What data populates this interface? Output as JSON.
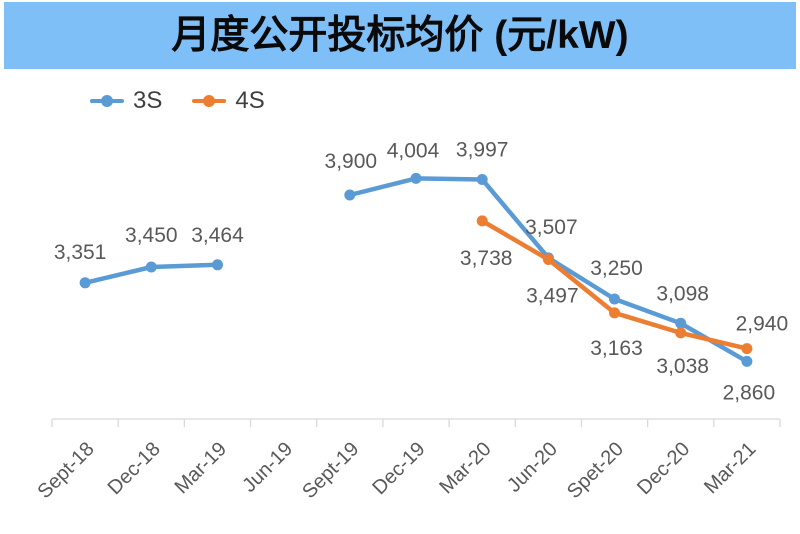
{
  "title": "月度公开投标均价 (元/kW)",
  "legend": [
    {
      "label": "3S",
      "color": "#5b9bd5"
    },
    {
      "label": "4S",
      "color": "#ed7d31"
    }
  ],
  "colors": {
    "banner_background": "#7ebff8",
    "title_text": "#0a0a0a",
    "axis_line": "#d9d9d9",
    "label_text": "#595959",
    "legend_text": "#404040",
    "series_3s": "#5b9bd5",
    "series_4s": "#ed7d31"
  },
  "chart_data": {
    "type": "line",
    "title": "月度公开投标均价 (元/kW)",
    "xlabel": "",
    "ylabel": "",
    "grid": false,
    "legend_position": "top-left",
    "ylim": [
      2500,
      4400
    ],
    "categories": [
      "Sept-18",
      "Dec-18",
      "Mar-19",
      "Jun-19",
      "Sept-19",
      "Dec-19",
      "Mar-20",
      "Jun-20",
      "Spet-20",
      "Dec-20",
      "Mar-21"
    ],
    "series": [
      {
        "name": "3S",
        "color": "#5b9bd5",
        "values": [
          3351,
          3450,
          3464,
          null,
          3900,
          4004,
          3997,
          3507,
          3250,
          3098,
          2860
        ],
        "labels": [
          "3,351",
          "3,450",
          "3,464",
          null,
          "3,900",
          "4,004",
          "3,997",
          "3,507",
          "3,250",
          "3,098",
          "2,860"
        ],
        "label_offsets": [
          [
            -5,
            -31
          ],
          [
            0,
            -32
          ],
          [
            0,
            -30
          ],
          null,
          [
            1,
            -34
          ],
          [
            -3,
            -28
          ],
          [
            0,
            -30
          ],
          [
            3,
            -31
          ],
          [
            2,
            -31
          ],
          [
            2,
            -30
          ],
          [
            2,
            31
          ]
        ]
      },
      {
        "name": "4S",
        "color": "#ed7d31",
        "values": [
          null,
          null,
          null,
          null,
          null,
          null,
          3738,
          3497,
          3163,
          3038,
          2940
        ],
        "labels": [
          null,
          null,
          null,
          null,
          null,
          null,
          "3,738",
          "3,497",
          "3,163",
          "3,038",
          "2,940"
        ],
        "label_offsets": [
          null,
          null,
          null,
          null,
          null,
          null,
          [
            4,
            37
          ],
          [
            4,
            36
          ],
          [
            2,
            35
          ],
          [
            2,
            33
          ],
          [
            15,
            -25
          ]
        ]
      }
    ]
  }
}
